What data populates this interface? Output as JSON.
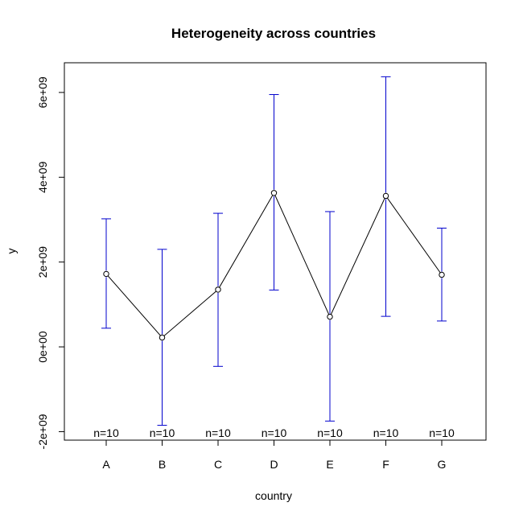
{
  "chart_data": {
    "type": "line",
    "title": "Heterogeneity across countries",
    "xlabel": "country",
    "ylabel": "y",
    "categories": [
      "A",
      "B",
      "C",
      "D",
      "E",
      "F",
      "G"
    ],
    "means": [
      1720000000.0,
      220000000.0,
      1350000000.0,
      3630000000.0,
      710000000.0,
      3560000000.0,
      1700000000.0
    ],
    "upper": [
      3020000000.0,
      2300000000.0,
      3150000000.0,
      5950000000.0,
      3190000000.0,
      6370000000.0,
      2800000000.0
    ],
    "lower": [
      440000000.0,
      -1850000000.0,
      -460000000.0,
      1340000000.0,
      -1750000000.0,
      720000000.0,
      610000000.0
    ],
    "counts": [
      "n=10",
      "n=10",
      "n=10",
      "n=10",
      "n=10",
      "n=10",
      "n=10"
    ],
    "ylim": [
      -2200000000.0,
      6700000000.0
    ],
    "y_ticks": [
      -2000000000,
      0,
      2000000000,
      4000000000,
      6000000000
    ],
    "y_tick_labels": [
      "-2e+09",
      "0e+00",
      "2e+09",
      "4e+09",
      "6e+09"
    ],
    "errorbar_color": "#0000cd",
    "line_color": "#000000",
    "grid": false
  }
}
